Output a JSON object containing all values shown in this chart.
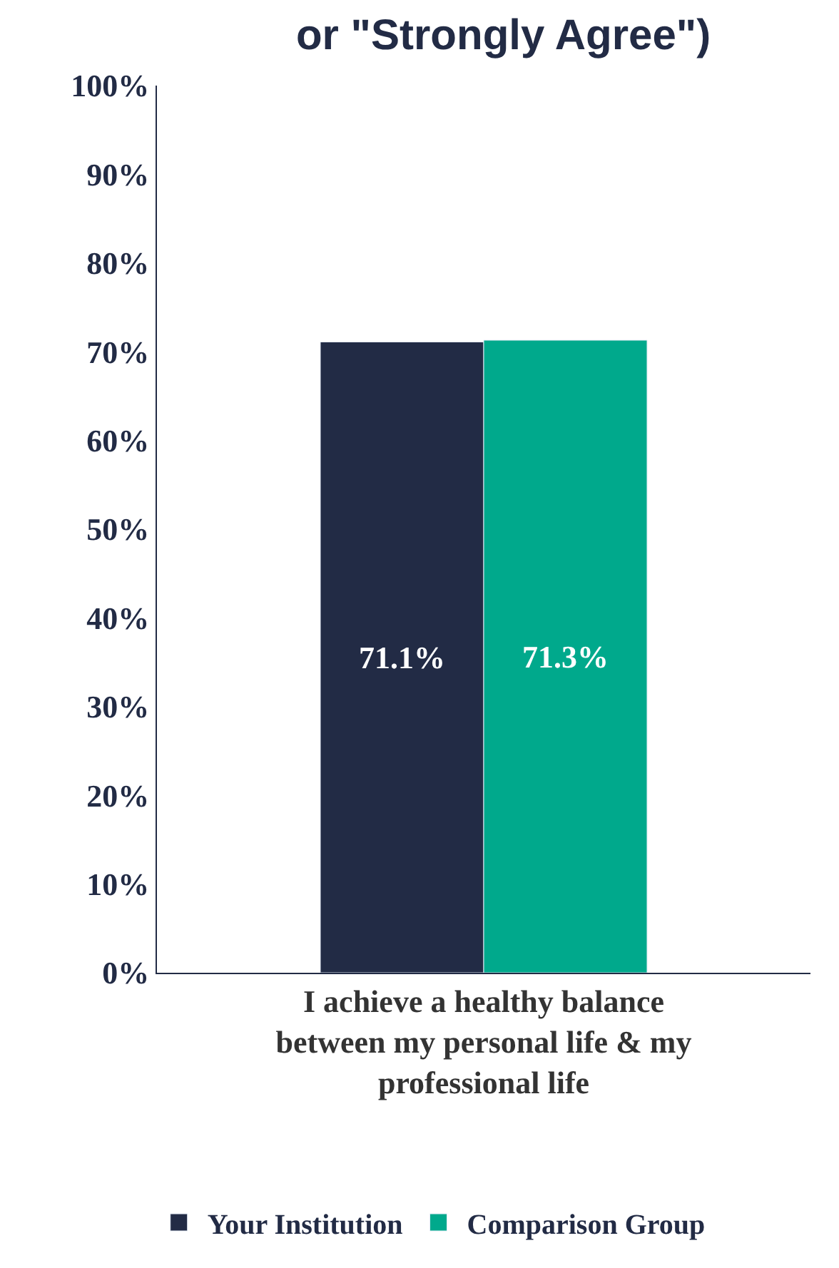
{
  "chart_data": {
    "type": "bar",
    "title": "or \"Strongly Agree\")",
    "categories": [
      "I achieve a healthy balance between my personal life & my professional life"
    ],
    "series": [
      {
        "name": "Your Institution",
        "color": "#222b45",
        "values": [
          71.1
        ],
        "value_labels": [
          "71.1%"
        ]
      },
      {
        "name": "Comparison Group",
        "color": "#00a98c",
        "values": [
          71.3
        ],
        "value_labels": [
          "71.3%"
        ]
      }
    ],
    "ylim": [
      0,
      100
    ],
    "yticks": [
      {
        "value": 0,
        "label": "0%"
      },
      {
        "value": 10,
        "label": "10%"
      },
      {
        "value": 20,
        "label": "20%"
      },
      {
        "value": 30,
        "label": "30%"
      },
      {
        "value": 40,
        "label": "40%"
      },
      {
        "value": 50,
        "label": "50%"
      },
      {
        "value": 60,
        "label": "60%"
      },
      {
        "value": 70,
        "label": "70%"
      },
      {
        "value": 80,
        "label": "80%"
      },
      {
        "value": 90,
        "label": "90%"
      },
      {
        "value": 100,
        "label": "100%"
      }
    ],
    "legend": "bottom"
  }
}
